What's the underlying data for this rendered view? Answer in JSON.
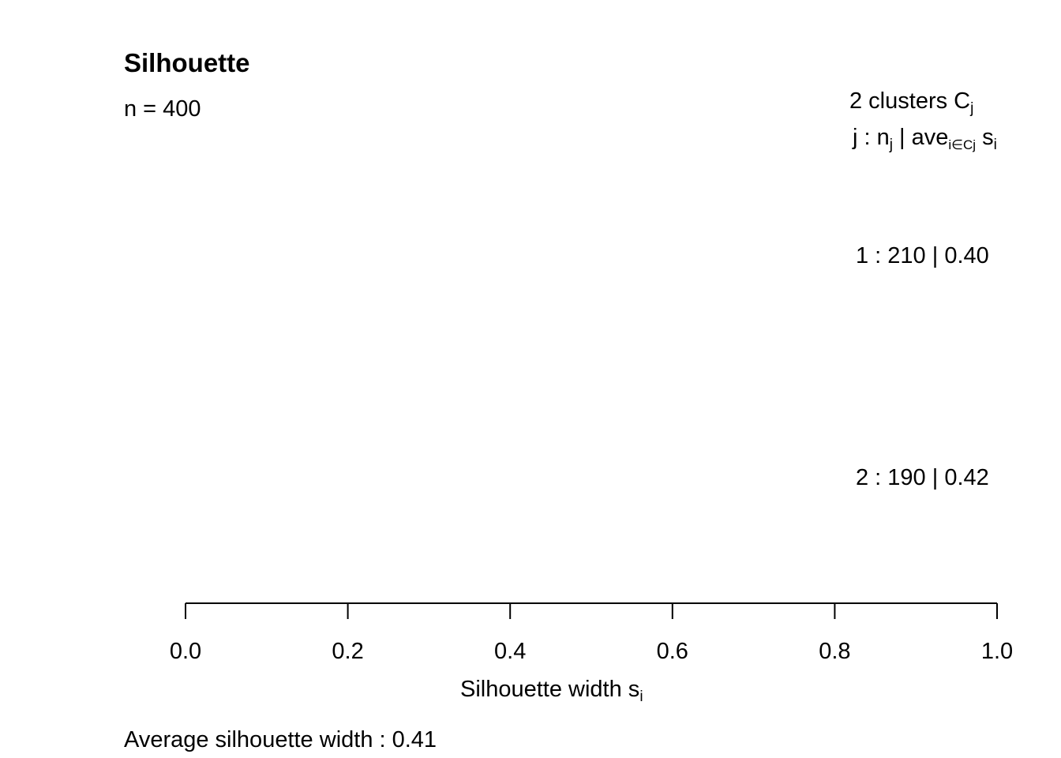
{
  "chart_data": {
    "type": "bar",
    "title": "Silhouette",
    "subtitle": "n = 400",
    "header": {
      "line1_prefix": "2  clusters  C",
      "line1_sub": "j",
      "line2_prefix": "j :  n",
      "line2_sub_j": "j",
      "line2_mid": " | ave",
      "line2_sub_i": "i∈Cj",
      "line2_s": "  s",
      "line2_sub_s": "i"
    },
    "clusters": [
      {
        "id": "1",
        "size": "210",
        "ave_width": "0.40"
      },
      {
        "id": "2",
        "size": "190",
        "ave_width": "0.42"
      }
    ],
    "xlabel_prefix": "Silhouette width s",
    "xlabel_sub": "i",
    "xlim": [
      0,
      1
    ],
    "xticks": [
      "0.0",
      "0.2",
      "0.4",
      "0.6",
      "0.8",
      "1.0"
    ],
    "average_label": "Average silhouette width :  0.41"
  }
}
